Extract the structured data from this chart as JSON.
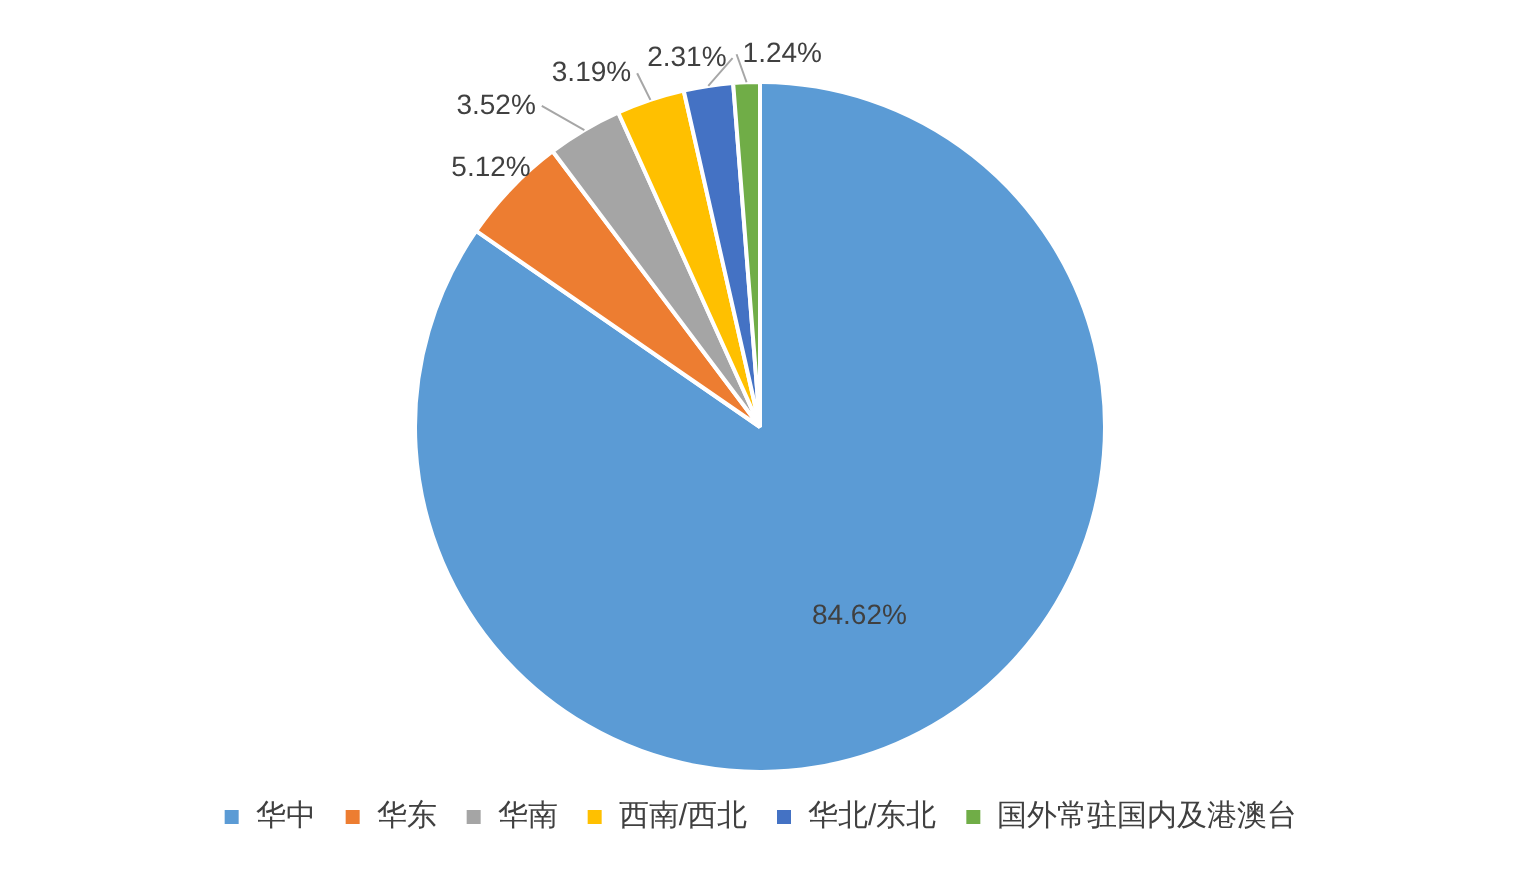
{
  "chart_data": {
    "type": "pie",
    "categories": [
      "华中",
      "华东",
      "华南",
      "西南/西北",
      "华北/东北",
      "国外常驻国内及港澳台"
    ],
    "values": [
      84.62,
      5.12,
      3.52,
      3.19,
      2.31,
      1.24
    ],
    "colors": [
      "#5b9bd5",
      "#ed7d31",
      "#a5a5a5",
      "#ffc000",
      "#4472c4",
      "#70ad47"
    ],
    "value_labels": [
      "84.62%",
      "5.12%",
      "3.52%",
      "3.19%",
      "2.31%",
      "1.24%"
    ],
    "legend": "bottom"
  }
}
